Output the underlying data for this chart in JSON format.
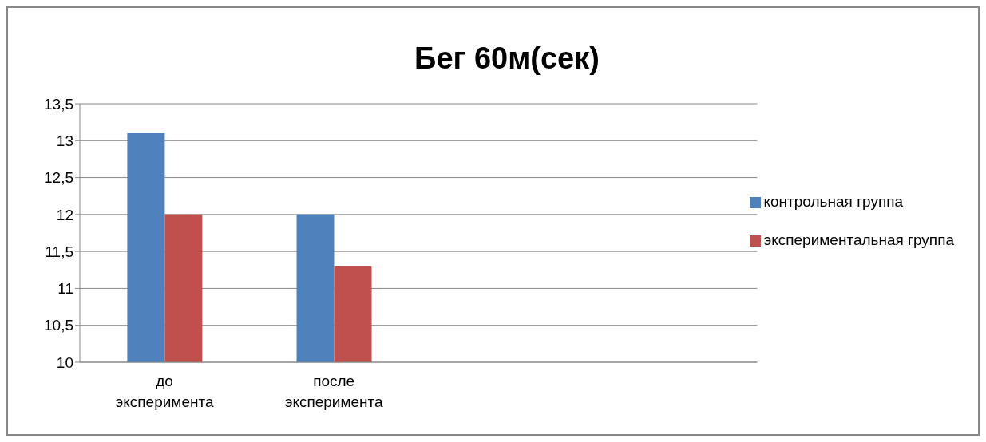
{
  "chart_data": {
    "type": "bar",
    "title": "Бег 60м(сек)",
    "categories": [
      "до эксперимента",
      "после эксперимента",
      null,
      null
    ],
    "series": [
      {
        "name": "контрольная группа",
        "color": "#4f81bd",
        "values": [
          13.1,
          12,
          null,
          null
        ]
      },
      {
        "name": "экспериментальная группа",
        "color": "#c0504d",
        "values": [
          12,
          11.3,
          null,
          null
        ]
      }
    ],
    "ylim": [
      10,
      13.5
    ],
    "yticks": [
      {
        "value": 10,
        "label": "10"
      },
      {
        "value": 10.5,
        "label": "10,5"
      },
      {
        "value": 11,
        "label": "11"
      },
      {
        "value": 11.5,
        "label": "11,5"
      },
      {
        "value": 12,
        "label": "12"
      },
      {
        "value": 12.5,
        "label": "12,5"
      },
      {
        "value": 13,
        "label": "13"
      },
      {
        "value": 13.5,
        "label": "13,5"
      }
    ],
    "grid": "y",
    "legend": "right"
  }
}
